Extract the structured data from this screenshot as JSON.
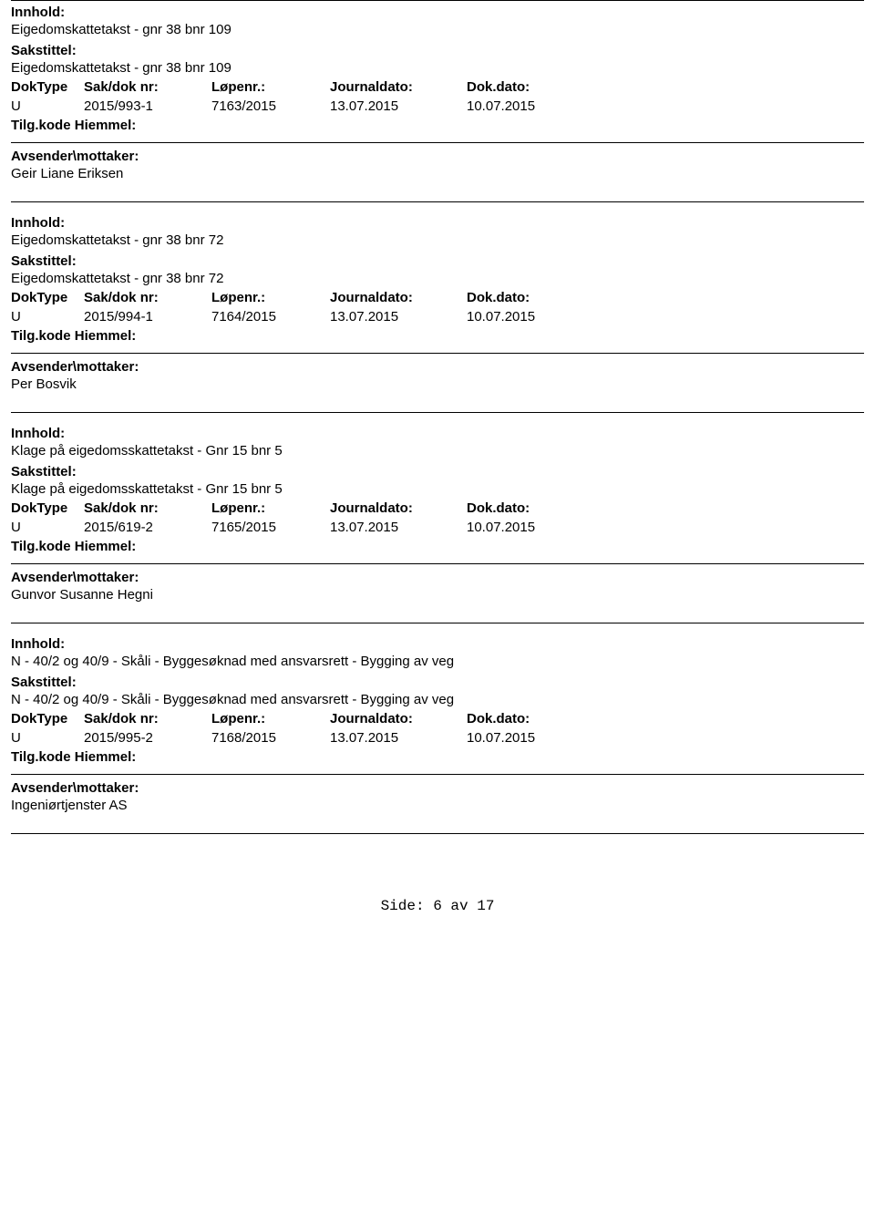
{
  "labels": {
    "innhold": "Innhold:",
    "sakstittel": "Sakstittel:",
    "doktype": "DokType",
    "sakdok": "Sak/dok nr:",
    "lopenr": "Løpenr.:",
    "journaldato": "Journaldato:",
    "dokdato": "Dok.dato:",
    "tilakode": "Tilg.kode",
    "hjemmel": "Hiemmel:",
    "avsender": "Avsender\\mottaker:"
  },
  "records": [
    {
      "innhold": "Eigedomskattetakst - gnr 38 bnr 109",
      "sakstittel": "Eigedomskattetakst - gnr 38 bnr 109",
      "doktype": "U",
      "sakdok": "2015/993-1",
      "lopenr": "7163/2015",
      "journaldato": "13.07.2015",
      "dokdato": "10.07.2015",
      "avsender": "Geir Liane Eriksen",
      "topline": true
    },
    {
      "innhold": "Eigedomskattetakst - gnr 38 bnr 72",
      "sakstittel": "Eigedomskattetakst - gnr 38 bnr 72",
      "doktype": "U",
      "sakdok": "2015/994-1",
      "lopenr": "7164/2015",
      "journaldato": "13.07.2015",
      "dokdato": "10.07.2015",
      "avsender": "Per Bosvik",
      "topline": false
    },
    {
      "innhold": "Klage på eigedomsskattetakst - Gnr 15 bnr 5",
      "sakstittel": "Klage på eigedomsskattetakst - Gnr 15 bnr 5",
      "doktype": "U",
      "sakdok": "2015/619-2",
      "lopenr": "7165/2015",
      "journaldato": "13.07.2015",
      "dokdato": "10.07.2015",
      "avsender": "Gunvor Susanne Hegni",
      "topline": false
    },
    {
      "innhold": "N - 40/2 og 40/9 - Skåli - Byggesøknad med ansvarsrett - Bygging av veg",
      "sakstittel": "N - 40/2 og 40/9 - Skåli - Byggesøknad med ansvarsrett - Bygging av veg",
      "doktype": "U",
      "sakdok": "2015/995-2",
      "lopenr": "7168/2015",
      "journaldato": "13.07.2015",
      "dokdato": "10.07.2015",
      "avsender": "Ingeniørtjenster AS",
      "topline": false
    }
  ],
  "footer": {
    "prefix": "Side:",
    "page": "6",
    "sep": "av",
    "total": "17"
  }
}
